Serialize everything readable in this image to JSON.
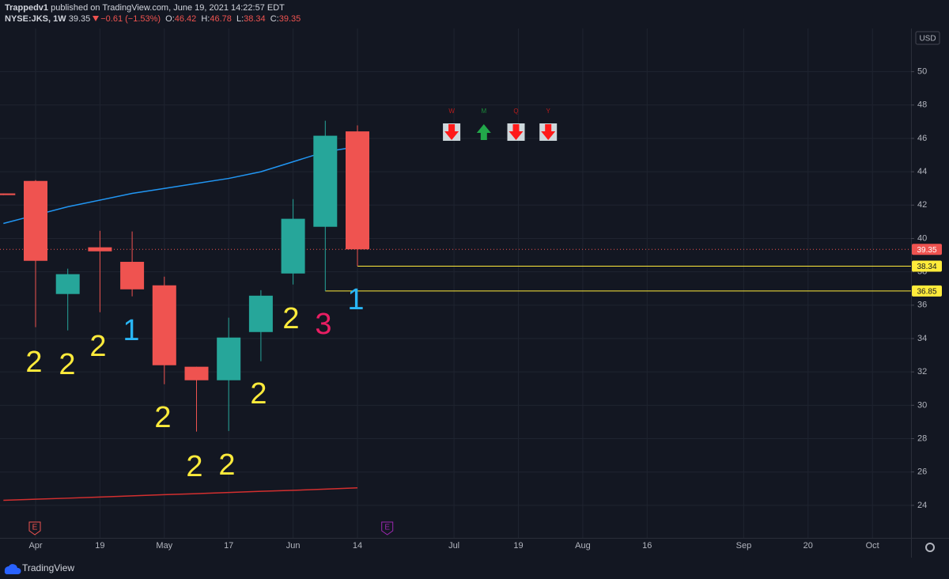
{
  "header": {
    "author": "Trappedv1",
    "published": "published on TradingView.com, June 19, 2021 14:22:57 EDT",
    "symbol": "NYSE:JKS, 1W",
    "last": "39.35",
    "change": "−0.61 (−1.53%)",
    "ohlc": [
      {
        "label": "O:",
        "value": "46.42"
      },
      {
        "label": "H:",
        "value": "46.78"
      },
      {
        "label": "L:",
        "value": "38.34"
      },
      {
        "label": "C:",
        "value": "39.35"
      }
    ]
  },
  "footer": {
    "brand": "TradingView"
  },
  "chart_data": {
    "type": "candlestick",
    "currency": "USD",
    "categories": [
      null,
      "Apr",
      null,
      "19",
      null,
      "May",
      null,
      "17",
      null,
      "Jun",
      null,
      "14",
      null,
      null,
      "Jul",
      null,
      "19",
      null,
      "Aug",
      null,
      "16",
      null,
      null,
      "Sep",
      null,
      "20",
      null,
      "Oct",
      null
    ],
    "open": [
      42.7,
      43.45,
      36.67,
      39.47,
      38.6,
      37.19,
      32.31,
      31.5,
      34.39,
      37.9,
      40.7,
      46.42,
      null,
      null,
      null,
      null,
      null,
      null,
      null,
      null,
      null,
      null,
      null,
      null,
      null,
      null,
      null,
      null,
      null
    ],
    "high": [
      42.7,
      43.5,
      38.19,
      40.46,
      40.42,
      37.71,
      32.31,
      35.25,
      36.9,
      42.36,
      47.06,
      46.78,
      null,
      null,
      null,
      null,
      null,
      null,
      null,
      null,
      null,
      null,
      null,
      null,
      null,
      null,
      null,
      null,
      null
    ],
    "low": [
      42.6,
      34.68,
      34.49,
      35.58,
      36.53,
      31.26,
      28.42,
      28.46,
      32.64,
      37.24,
      36.85,
      38.34,
      null,
      null,
      null,
      null,
      null,
      null,
      null,
      null,
      null,
      null,
      null,
      null,
      null,
      null,
      null,
      null,
      null
    ],
    "close": [
      42.6,
      38.66,
      37.86,
      39.23,
      36.95,
      32.4,
      31.5,
      34.06,
      36.57,
      41.18,
      46.16,
      39.35,
      null,
      null,
      null,
      null,
      null,
      null,
      null,
      null,
      null,
      null,
      null,
      null,
      null,
      null,
      null,
      null,
      null
    ],
    "up_color": "#26a69a",
    "down_color": "#ef5350",
    "series": [
      {
        "color": "#2196f3",
        "values": [
          40.9,
          41.4,
          41.9,
          42.3,
          42.7,
          43.0,
          43.3,
          43.6,
          44.0,
          44.6,
          45.2,
          45.5,
          null,
          null,
          null,
          null,
          null,
          null,
          null,
          null,
          null,
          null,
          null,
          null,
          null,
          null,
          null,
          null,
          null
        ]
      },
      {
        "color": "#d32f2f",
        "values": [
          24.3,
          24.37,
          24.43,
          24.5,
          24.57,
          24.64,
          24.7,
          24.77,
          24.84,
          24.9,
          24.97,
          25.05,
          null,
          null,
          null,
          null,
          null,
          null,
          null,
          null,
          null,
          null,
          null,
          null,
          null,
          null,
          null,
          null,
          null
        ]
      }
    ],
    "price_lines": [
      {
        "value": 39.35,
        "color": "#ef5350"
      },
      {
        "value": 38.34,
        "color": "#ffeb3b"
      },
      {
        "value": 36.85,
        "color": "#ffeb3b"
      }
    ],
    "annotations": [
      {
        "text": "2",
        "color": "#ffeb3b"
      },
      {
        "text": "2",
        "color": "#ffeb3b"
      },
      {
        "text": "2",
        "color": "#ffeb3b"
      },
      {
        "text": "1",
        "color": "#29b6f6"
      },
      {
        "text": "2",
        "color": "#ffeb3b"
      },
      {
        "text": "2",
        "color": "#ffeb3b"
      },
      {
        "text": "2",
        "color": "#ffeb3b"
      },
      {
        "text": "2",
        "color": "#ffeb3b"
      },
      {
        "text": "2",
        "color": "#ffeb3b"
      },
      {
        "text": "3",
        "color": "#e91e63"
      },
      {
        "text": "1",
        "color": "#29b6f6"
      }
    ],
    "signals": [
      {
        "label": "W",
        "direction": "down",
        "color": "#b71c1c"
      },
      {
        "label": "M",
        "direction": "up",
        "color": "#1b8a3a"
      },
      {
        "label": "Q",
        "direction": "down",
        "color": "#b71c1c"
      },
      {
        "label": "Y",
        "direction": "down",
        "color": "#b71c1c"
      }
    ],
    "earnings": [
      {
        "label": "E",
        "color": "#ef5350"
      },
      {
        "label": "E",
        "color": "#9c27b0"
      }
    ],
    "ylim": [
      22.05,
      52.4
    ],
    "yticks": [
      24,
      26,
      28,
      30,
      32,
      34,
      36,
      38,
      40,
      42,
      44,
      46,
      48,
      50
    ],
    "grid": true
  }
}
